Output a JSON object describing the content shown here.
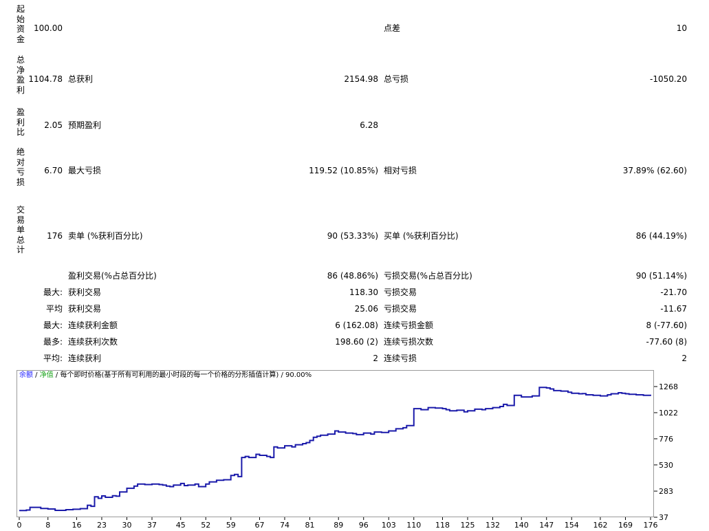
{
  "stats": {
    "initial_deposit": {
      "label": "起始资金",
      "value": "100.00"
    },
    "spread": {
      "label": "点差",
      "value": "10"
    },
    "total_net_profit": {
      "label": "总净盈利",
      "value": "1104.78"
    },
    "gross_profit": {
      "label": "总获利",
      "value": "2154.98"
    },
    "gross_loss": {
      "label": "总亏损",
      "value": "-1050.20"
    },
    "profit_factor": {
      "label": "盈利比",
      "value": "2.05"
    },
    "expected_payoff": {
      "label": "预期盈利",
      "value": "6.28"
    },
    "absolute_drawdown": {
      "label": "绝对亏损",
      "value": "6.70"
    },
    "maximal_drawdown": {
      "label": "最大亏损",
      "value": "119.52 (10.85%)"
    },
    "relative_drawdown": {
      "label": "相对亏损",
      "value": "37.89% (62.60)"
    },
    "total_trades": {
      "label": "交易单总计",
      "value": "176"
    },
    "short_positions": {
      "label": "卖单 (%获利百分比)",
      "value": "90 (53.33%)"
    },
    "long_positions": {
      "label": "买单 (%获利百分比)",
      "value": "86 (44.19%)"
    },
    "profit_trades": {
      "label": "盈利交易(%占总百分比)",
      "value": "86 (48.86%)"
    },
    "loss_trades": {
      "label": "亏损交易(%占总百分比)",
      "value": "90 (51.14%)"
    }
  },
  "rows": [
    {
      "prefix": "最大:",
      "left_label": "获利交易",
      "left_value": "118.30",
      "right_label": "亏损交易",
      "right_value": "-21.70"
    },
    {
      "prefix": "平均",
      "left_label": "获利交易",
      "left_value": "25.06",
      "right_label": "亏损交易",
      "right_value": "-11.67"
    },
    {
      "prefix": "最大:",
      "left_label": "连续获利金额",
      "left_value": "6 (162.08)",
      "right_label": "连续亏损金额",
      "right_value": "8 (-77.60)"
    },
    {
      "prefix": "最多:",
      "left_label": "连续获利次数",
      "left_value": "198.60 (2)",
      "right_label": "连续亏损次数",
      "right_value": "-77.60 (8)"
    },
    {
      "prefix": "平均:",
      "left_label": "连续获利",
      "left_value": "2",
      "right_label": "连续亏损",
      "right_value": "2"
    }
  ],
  "chart_legend": {
    "balance": "余额",
    "sep1": " / ",
    "equity": "净值",
    "rest": " / 每个即时价格(基于所有可利用的最小时段的每一个价格的分形插值计算) / 90.00%"
  },
  "colors": {
    "balance_line": "#1a1aaa",
    "balance_legend": "#1a1aff",
    "equity_legend": "#1aa31a",
    "grid": "#9a9a9a"
  },
  "chart_data": {
    "type": "line",
    "title": "",
    "xlabel": "",
    "ylabel": "",
    "x_ticks": [
      "0",
      "8",
      "16",
      "23",
      "30",
      "37",
      "45",
      "52",
      "59",
      "67",
      "74",
      "81",
      "89",
      "96",
      "103",
      "110",
      "118",
      "125",
      "132",
      "140",
      "147",
      "154",
      "162",
      "169",
      "176"
    ],
    "y_ticks": [
      "1268",
      "1022",
      "776",
      "530",
      "283",
      "37"
    ],
    "xlim": [
      0,
      176
    ],
    "ylim": [
      37,
      1268
    ],
    "series": [
      {
        "x": [
          0,
          2,
          3,
          6,
          8,
          10,
          13,
          15,
          17,
          19,
          20,
          21,
          22,
          23,
          24,
          26,
          27,
          28,
          30,
          32,
          33,
          35,
          37,
          39,
          40,
          41,
          42,
          43,
          45,
          46,
          47,
          49,
          50,
          52,
          53,
          55,
          57,
          59,
          60,
          61,
          62,
          63,
          64,
          66,
          67,
          69,
          70,
          71,
          72,
          74,
          76,
          77,
          79,
          80,
          81,
          82,
          83,
          84,
          86,
          88,
          89,
          91,
          93,
          94,
          96,
          98,
          99,
          101,
          103,
          105,
          107,
          108,
          110,
          112,
          114,
          116,
          118,
          119,
          120,
          122,
          124,
          125,
          127,
          129,
          130,
          132,
          134,
          135,
          136,
          138,
          140,
          143,
          145,
          147,
          148,
          149,
          151,
          153,
          154,
          156,
          157,
          158,
          160,
          162,
          164,
          165,
          167,
          168,
          169,
          170,
          172,
          174,
          176
        ],
        "y": [
          100,
          105,
          130,
          120,
          115,
          102,
          108,
          112,
          118,
          150,
          140,
          230,
          215,
          238,
          225,
          240,
          235,
          275,
          310,
          330,
          350,
          345,
          350,
          345,
          340,
          330,
          325,
          340,
          355,
          335,
          340,
          350,
          325,
          350,
          370,
          385,
          390,
          430,
          440,
          420,
          600,
          610,
          600,
          630,
          620,
          610,
          600,
          700,
          690,
          710,
          700,
          720,
          730,
          740,
          760,
          790,
          800,
          810,
          820,
          850,
          840,
          830,
          825,
          815,
          830,
          820,
          840,
          835,
          850,
          870,
          880,
          900,
          1060,
          1050,
          1070,
          1065,
          1060,
          1050,
          1040,
          1045,
          1030,
          1040,
          1055,
          1050,
          1060,
          1070,
          1080,
          1100,
          1090,
          1185,
          1170,
          1180,
          1260,
          1255,
          1245,
          1230,
          1225,
          1215,
          1205,
          1200,
          1202,
          1190,
          1185,
          1180,
          1190,
          1200,
          1210,
          1205,
          1200,
          1195,
          1190,
          1185,
          1180
        ],
        "color": "#1a1aaa"
      }
    ]
  }
}
